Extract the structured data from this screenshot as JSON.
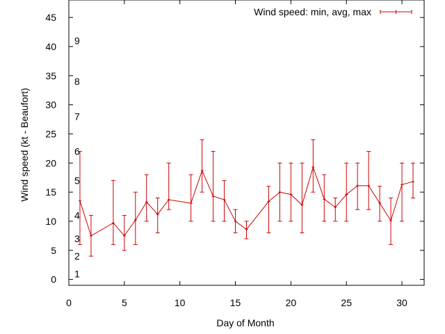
{
  "chart_data": {
    "type": "line",
    "xlabel": "Day of Month",
    "ylabel": "Wind speed (kt - Beaufort)",
    "xlim": [
      0,
      32
    ],
    "ylim": [
      -1,
      48
    ],
    "x_ticks": [
      0,
      5,
      10,
      15,
      20,
      25,
      30
    ],
    "y_ticks": [
      0,
      5,
      10,
      15,
      20,
      25,
      30,
      35,
      40,
      45
    ],
    "grid": false,
    "legend": {
      "position": "top-right"
    },
    "beaufort_labels": [
      {
        "label": "1",
        "y": 1
      },
      {
        "label": "2",
        "y": 4
      },
      {
        "label": "3",
        "y": 7
      },
      {
        "label": "4",
        "y": 11
      },
      {
        "label": "5",
        "y": 17
      },
      {
        "label": "6",
        "y": 22
      },
      {
        "label": "7",
        "y": 28
      },
      {
        "label": "8",
        "y": 34
      },
      {
        "label": "9",
        "y": 41
      }
    ],
    "series": [
      {
        "name": "Wind speed: min, avg, max",
        "color": "#cc0000",
        "points": [
          {
            "x": 1,
            "avg": 13.5,
            "min": 6,
            "max": 22
          },
          {
            "x": 2,
            "avg": 7.5,
            "min": 4,
            "max": 11
          },
          {
            "x": 4,
            "avg": 9.7,
            "min": 6,
            "max": 17
          },
          {
            "x": 5,
            "avg": 7.5,
            "min": 5,
            "max": 11
          },
          {
            "x": 6,
            "avg": 10.2,
            "min": 6,
            "max": 15
          },
          {
            "x": 7,
            "avg": 13.3,
            "min": 10,
            "max": 18
          },
          {
            "x": 8,
            "avg": 11.2,
            "min": 8,
            "max": 14
          },
          {
            "x": 9,
            "avg": 13.7,
            "min": 12,
            "max": 20
          },
          {
            "x": 11,
            "avg": 13.1,
            "min": 10,
            "max": 18
          },
          {
            "x": 12,
            "avg": 18.7,
            "min": 15,
            "max": 24
          },
          {
            "x": 13,
            "avg": 14.3,
            "min": 10,
            "max": 22
          },
          {
            "x": 14,
            "avg": 13.7,
            "min": 10,
            "max": 17
          },
          {
            "x": 15,
            "avg": 10.0,
            "min": 8,
            "max": 12
          },
          {
            "x": 16,
            "avg": 8.6,
            "min": 7,
            "max": 10
          },
          {
            "x": 18,
            "avg": 13.4,
            "min": 8,
            "max": 16
          },
          {
            "x": 19,
            "avg": 15.0,
            "min": 10,
            "max": 20
          },
          {
            "x": 20,
            "avg": 14.6,
            "min": 10,
            "max": 20
          },
          {
            "x": 21,
            "avg": 12.8,
            "min": 8,
            "max": 20
          },
          {
            "x": 22,
            "avg": 19.3,
            "min": 15,
            "max": 24
          },
          {
            "x": 23,
            "avg": 13.8,
            "min": 10,
            "max": 18
          },
          {
            "x": 24,
            "avg": 12.4,
            "min": 10,
            "max": 14
          },
          {
            "x": 25,
            "avg": 14.6,
            "min": 10,
            "max": 20
          },
          {
            "x": 26,
            "avg": 16.1,
            "min": 12,
            "max": 20
          },
          {
            "x": 27,
            "avg": 16.1,
            "min": 12,
            "max": 22
          },
          {
            "x": 28,
            "avg": 13.1,
            "min": 10,
            "max": 16
          },
          {
            "x": 29,
            "avg": 10.1,
            "min": 6,
            "max": 14
          },
          {
            "x": 30,
            "avg": 16.3,
            "min": 10,
            "max": 20
          },
          {
            "x": 31,
            "avg": 16.8,
            "min": 14,
            "max": 20
          }
        ]
      }
    ]
  }
}
